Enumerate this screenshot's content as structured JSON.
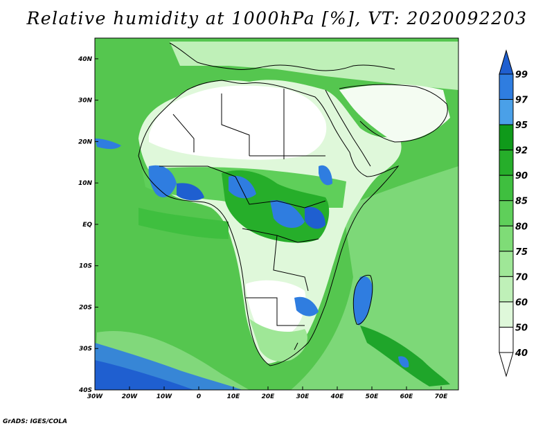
{
  "title": "Relative humidity at 1000hPa [%], VT: 2020092203",
  "credit": "GrADS: IGES/COLA",
  "map": {
    "lon_range": [
      -30,
      75
    ],
    "lat_range": [
      -40,
      45
    ],
    "lon_ticks": [
      "30W",
      "20W",
      "10W",
      "0",
      "10E",
      "20E",
      "30E",
      "40E",
      "50E",
      "60E",
      "70E"
    ],
    "lat_ticks": [
      "40N",
      "30N",
      "20N",
      "10N",
      "EQ",
      "10S",
      "20S",
      "30S",
      "40S"
    ],
    "lon_tick_values": [
      -30,
      -20,
      -10,
      0,
      10,
      20,
      30,
      40,
      50,
      60,
      70
    ],
    "lat_tick_values": [
      40,
      30,
      20,
      10,
      0,
      -10,
      -20,
      -30,
      -40
    ]
  },
  "colorbar": {
    "levels": [
      "99",
      "97",
      "95",
      "92",
      "90",
      "85",
      "80",
      "75",
      "70",
      "60",
      "50",
      "40"
    ],
    "colors": [
      "#1f5fd0",
      "#2f7de0",
      "#4aa0e8",
      "#0f9a1a",
      "#26ae2a",
      "#3fbf3f",
      "#5fcf5a",
      "#7fdc77",
      "#9fe797",
      "#bff0b8",
      "#dff8da",
      "#ffffff"
    ]
  }
}
